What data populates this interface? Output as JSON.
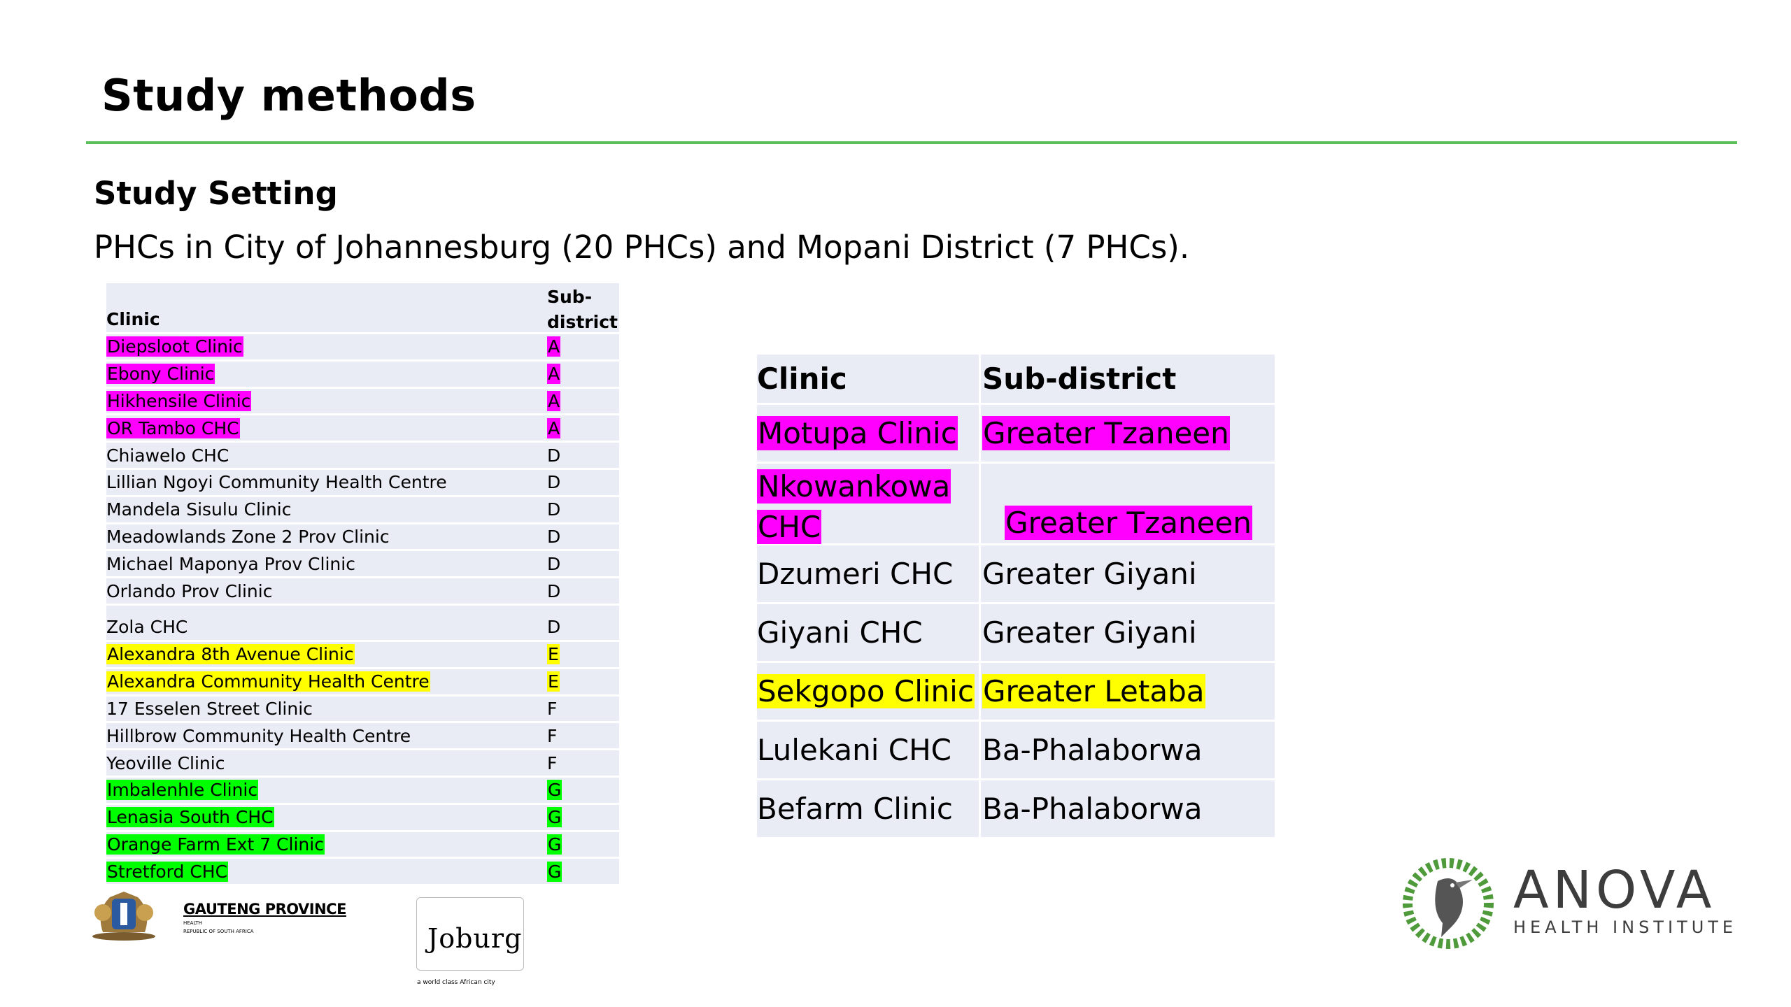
{
  "slide": {
    "title": "Study methods",
    "subtitle": "Study Setting",
    "description": "PHCs in City of Johannesburg (20 PHCs) and Mopani District (7 PHCs)."
  },
  "colors": {
    "rule": "#5cc05a",
    "magenta": "#ff00ff",
    "yellow": "#ffff00",
    "green": "#00ff00",
    "table_bg": "#e9ebf5"
  },
  "joburg_table": {
    "col_clinic": "Clinic",
    "col_sub_line1": "Sub-",
    "col_sub_line2": "district",
    "rows": [
      {
        "clinic": "Diepsloot Clinic",
        "sub": "A",
        "hl": "magenta"
      },
      {
        "clinic": "Ebony Clinic",
        "sub": "A",
        "hl": "magenta"
      },
      {
        "clinic": "Hikhensile Clinic",
        "sub": "A",
        "hl": "magenta"
      },
      {
        "clinic": "OR Tambo CHC",
        "sub": "A",
        "hl": "magenta"
      },
      {
        "clinic": "Chiawelo CHC",
        "sub": "D",
        "hl": ""
      },
      {
        "clinic": "Lillian Ngoyi Community Health Centre",
        "sub": "D",
        "hl": ""
      },
      {
        "clinic": "Mandela Sisulu Clinic",
        "sub": "D",
        "hl": ""
      },
      {
        "clinic": "Meadowlands Zone 2 Prov Clinic",
        "sub": "D",
        "hl": ""
      },
      {
        "clinic": "Michael Maponya Prov Clinic",
        "sub": "D",
        "hl": ""
      },
      {
        "clinic": "Orlando Prov Clinic",
        "sub": "D",
        "hl": ""
      },
      {
        "clinic": "Zola CHC",
        "sub": "D",
        "hl": ""
      },
      {
        "clinic": "Alexandra 8th Avenue Clinic",
        "sub": "E",
        "hl": "yellow"
      },
      {
        "clinic": "Alexandra Community Health Centre",
        "sub": "E",
        "hl": "yellow"
      },
      {
        "clinic": "17 Esselen Street Clinic",
        "sub": "F",
        "hl": ""
      },
      {
        "clinic": "Hillbrow Community Health Centre",
        "sub": "F",
        "hl": ""
      },
      {
        "clinic": "Yeoville Clinic",
        "sub": "F",
        "hl": ""
      },
      {
        "clinic": "Imbalenhle Clinic",
        "sub": "G",
        "hl": "green"
      },
      {
        "clinic": "Lenasia South CHC",
        "sub": "G",
        "hl": "green"
      },
      {
        "clinic": "Orange Farm Ext 7 Clinic",
        "sub": "G",
        "hl": "green"
      },
      {
        "clinic": "Stretford CHC",
        "sub": "G",
        "hl": "green"
      }
    ]
  },
  "mopani_table": {
    "col_clinic": "Clinic",
    "col_sub": "Sub-district",
    "rows": [
      {
        "clinic": "Motupa Clinic",
        "sub": "Greater Tzaneen",
        "hl": "magenta"
      },
      {
        "clinic_line1": "Nkowankowa",
        "clinic_line2": "CHC",
        "sub": "Greater Tzaneen",
        "hl": "magenta"
      },
      {
        "clinic": "Dzumeri CHC",
        "sub": "Greater Giyani",
        "hl": ""
      },
      {
        "clinic": "Giyani CHC",
        "sub": "Greater Giyani",
        "hl": ""
      },
      {
        "clinic": "Sekgopo Clinic",
        "sub": "Greater Letaba",
        "hl": "yellow"
      },
      {
        "clinic": "Lulekani CHC",
        "sub": "Ba-Phalaborwa",
        "hl": ""
      },
      {
        "clinic": "Befarm Clinic",
        "sub": "Ba-Phalaborwa",
        "hl": ""
      }
    ]
  },
  "logos": {
    "gauteng_name": "GAUTENG PROVINCE",
    "gauteng_dept": "HEALTH",
    "gauteng_country": "REPUBLIC OF SOUTH AFRICA",
    "joburg_name": "Joburg",
    "joburg_tagline": "a world class African city",
    "anova_name": "ANOVA",
    "anova_sub": "HEALTH INSTITUTE"
  }
}
